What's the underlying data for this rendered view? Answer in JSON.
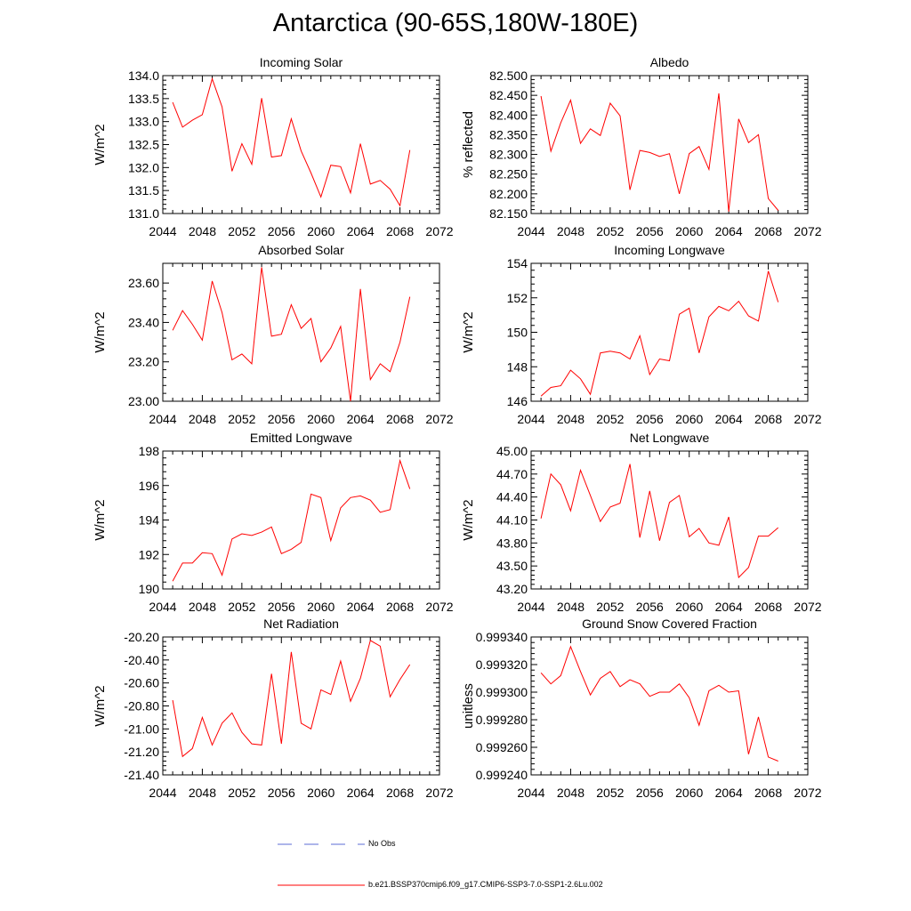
{
  "title": "Antarctica (90-65S,180W-180E)",
  "colors": {
    "model": "#ff0000",
    "obs": "#5b6bd6",
    "axis": "#000000"
  },
  "legend": {
    "obs_label": "No Obs",
    "model_label": "b.e21.BSSP370cmip6.f09_g17.CMIP6-SSP3-7.0-SSP1-2.6Lu.002"
  },
  "chart_data": [
    {
      "type": "line",
      "title": "Incoming Solar",
      "xlabel": "",
      "ylabel": "W/m^2",
      "xlim": [
        2044,
        2072
      ],
      "ylim": [
        131.0,
        134.0
      ],
      "grid": false,
      "xticks": [
        "2044",
        "2048",
        "2052",
        "2056",
        "2060",
        "2064",
        "2068",
        "2072"
      ],
      "yticks": [
        "131.0",
        "131.5",
        "132.0",
        "132.5",
        "133.0",
        "133.5",
        "134.0"
      ],
      "x": [
        2045,
        2046,
        2047,
        2048,
        2049,
        2050,
        2051,
        2052,
        2053,
        2054,
        2055,
        2056,
        2057,
        2058,
        2059,
        2060,
        2061,
        2062,
        2063,
        2064,
        2065,
        2066,
        2067,
        2068,
        2069
      ],
      "values": [
        133.42,
        132.88,
        133.03,
        133.15,
        133.93,
        133.32,
        131.92,
        132.52,
        132.07,
        133.51,
        132.23,
        132.26,
        133.06,
        132.36,
        131.88,
        131.36,
        132.05,
        132.02,
        131.45,
        132.52,
        131.64,
        131.72,
        131.53,
        131.17,
        132.38
      ]
    },
    {
      "type": "line",
      "title": "Albedo",
      "xlabel": "",
      "ylabel": "% reflected",
      "xlim": [
        2044,
        2072
      ],
      "ylim": [
        82.15,
        82.5
      ],
      "grid": false,
      "xticks": [
        "2044",
        "2048",
        "2052",
        "2056",
        "2060",
        "2064",
        "2068",
        "2072"
      ],
      "yticks": [
        "82.150",
        "82.200",
        "82.250",
        "82.300",
        "82.350",
        "82.400",
        "82.450",
        "82.500"
      ],
      "x": [
        2045,
        2046,
        2047,
        2048,
        2049,
        2050,
        2051,
        2052,
        2053,
        2054,
        2055,
        2056,
        2057,
        2058,
        2059,
        2060,
        2061,
        2062,
        2063,
        2064,
        2065,
        2066,
        2067,
        2068,
        2069
      ],
      "values": [
        82.448,
        82.308,
        82.38,
        82.438,
        82.328,
        82.365,
        82.348,
        82.43,
        82.398,
        82.21,
        82.31,
        82.305,
        82.295,
        82.302,
        82.2,
        82.302,
        82.32,
        82.262,
        82.455,
        82.155,
        82.39,
        82.33,
        82.35,
        82.188,
        82.158
      ]
    },
    {
      "type": "line",
      "title": "Absorbed Solar",
      "xlabel": "",
      "ylabel": "W/m^2",
      "xlim": [
        2044,
        2072
      ],
      "ylim": [
        23.0,
        23.7
      ],
      "grid": false,
      "xticks": [
        "2044",
        "2048",
        "2052",
        "2056",
        "2060",
        "2064",
        "2068",
        "2072"
      ],
      "yticks": [
        "23.00",
        "23.20",
        "23.40",
        "23.60"
      ],
      "x": [
        2045,
        2046,
        2047,
        2048,
        2049,
        2050,
        2051,
        2052,
        2053,
        2054,
        2055,
        2056,
        2057,
        2058,
        2059,
        2060,
        2061,
        2062,
        2063,
        2064,
        2065,
        2066,
        2067,
        2068,
        2069
      ],
      "values": [
        23.36,
        23.46,
        23.39,
        23.31,
        23.61,
        23.45,
        23.21,
        23.24,
        23.19,
        23.68,
        23.33,
        23.34,
        23.49,
        23.37,
        23.42,
        23.2,
        23.27,
        23.38,
        23.0,
        23.57,
        23.11,
        23.19,
        23.15,
        23.3,
        23.53
      ]
    },
    {
      "type": "line",
      "title": "Incoming Longwave",
      "xlabel": "",
      "ylabel": "W/m^2",
      "xlim": [
        2044,
        2072
      ],
      "ylim": [
        146,
        154
      ],
      "grid": false,
      "xticks": [
        "2044",
        "2048",
        "2052",
        "2056",
        "2060",
        "2064",
        "2068",
        "2072"
      ],
      "yticks": [
        "146",
        "148",
        "150",
        "152",
        "154"
      ],
      "x": [
        2045,
        2046,
        2047,
        2048,
        2049,
        2050,
        2051,
        2052,
        2053,
        2054,
        2055,
        2056,
        2057,
        2058,
        2059,
        2060,
        2061,
        2062,
        2063,
        2064,
        2065,
        2066,
        2067,
        2068,
        2069
      ],
      "values": [
        146.3,
        146.8,
        146.9,
        147.8,
        147.3,
        146.4,
        148.8,
        148.9,
        148.8,
        148.45,
        149.8,
        147.55,
        148.45,
        148.35,
        151.05,
        151.4,
        148.8,
        150.9,
        151.5,
        151.25,
        151.8,
        150.95,
        150.65,
        153.55,
        151.75
      ]
    },
    {
      "type": "line",
      "title": "Emitted Longwave",
      "xlabel": "",
      "ylabel": "W/m^2",
      "xlim": [
        2044,
        2072
      ],
      "ylim": [
        190,
        198
      ],
      "grid": false,
      "xticks": [
        "2044",
        "2048",
        "2052",
        "2056",
        "2060",
        "2064",
        "2068",
        "2072"
      ],
      "yticks": [
        "190",
        "192",
        "194",
        "196",
        "198"
      ],
      "x": [
        2045,
        2046,
        2047,
        2048,
        2049,
        2050,
        2051,
        2052,
        2053,
        2054,
        2055,
        2056,
        2057,
        2058,
        2059,
        2060,
        2061,
        2062,
        2063,
        2064,
        2065,
        2066,
        2067,
        2068,
        2069
      ],
      "values": [
        190.45,
        191.5,
        191.5,
        192.1,
        192.05,
        190.8,
        192.9,
        193.2,
        193.1,
        193.3,
        193.6,
        192.05,
        192.3,
        192.7,
        195.5,
        195.3,
        192.8,
        194.7,
        195.3,
        195.4,
        195.15,
        194.45,
        194.6,
        197.45,
        195.8
      ]
    },
    {
      "type": "line",
      "title": "Net Longwave",
      "xlabel": "",
      "ylabel": "W/m^2",
      "xlim": [
        2044,
        2072
      ],
      "ylim": [
        43.2,
        45.0
      ],
      "grid": false,
      "xticks": [
        "2044",
        "2048",
        "2052",
        "2056",
        "2060",
        "2064",
        "2068",
        "2072"
      ],
      "yticks": [
        "43.20",
        "43.50",
        "43.80",
        "44.10",
        "44.40",
        "44.70",
        "45.00"
      ],
      "x": [
        2045,
        2046,
        2047,
        2048,
        2049,
        2050,
        2051,
        2052,
        2053,
        2054,
        2055,
        2056,
        2057,
        2058,
        2059,
        2060,
        2061,
        2062,
        2063,
        2064,
        2065,
        2066,
        2067,
        2068,
        2069
      ],
      "values": [
        44.12,
        44.7,
        44.56,
        44.22,
        44.75,
        44.42,
        44.08,
        44.27,
        44.32,
        44.83,
        43.87,
        44.48,
        43.83,
        44.33,
        44.42,
        43.88,
        43.99,
        43.8,
        43.77,
        44.14,
        43.35,
        43.48,
        43.89,
        43.89,
        44.0
      ]
    },
    {
      "type": "line",
      "title": "Net Radiation",
      "xlabel": "",
      "ylabel": "W/m^2",
      "xlim": [
        2044,
        2072
      ],
      "ylim": [
        -21.4,
        -20.2
      ],
      "grid": false,
      "xticks": [
        "2044",
        "2048",
        "2052",
        "2056",
        "2060",
        "2064",
        "2068",
        "2072"
      ],
      "yticks": [
        "-21.40",
        "-21.20",
        "-21.00",
        "-20.80",
        "-20.60",
        "-20.40",
        "-20.20"
      ],
      "x": [
        2045,
        2046,
        2047,
        2048,
        2049,
        2050,
        2051,
        2052,
        2053,
        2054,
        2055,
        2056,
        2057,
        2058,
        2059,
        2060,
        2061,
        2062,
        2063,
        2064,
        2065,
        2066,
        2067,
        2068,
        2069
      ],
      "values": [
        -20.75,
        -21.24,
        -21.17,
        -20.9,
        -21.14,
        -20.95,
        -20.86,
        -21.03,
        -21.13,
        -21.14,
        -20.52,
        -21.13,
        -20.33,
        -20.95,
        -21.0,
        -20.66,
        -20.7,
        -20.41,
        -20.76,
        -20.56,
        -20.23,
        -20.28,
        -20.72,
        -20.57,
        -20.44
      ]
    },
    {
      "type": "line",
      "title": "Ground Snow Covered Fraction",
      "xlabel": "",
      "ylabel": "unitless",
      "xlim": [
        2044,
        2072
      ],
      "ylim": [
        0.99924,
        0.99934
      ],
      "grid": false,
      "xticks": [
        "2044",
        "2048",
        "2052",
        "2056",
        "2060",
        "2064",
        "2068",
        "2072"
      ],
      "yticks": [
        "0.999240",
        "0.999260",
        "0.999280",
        "0.999300",
        "0.999320",
        "0.999340"
      ],
      "x": [
        2045,
        2046,
        2047,
        2048,
        2049,
        2050,
        2051,
        2052,
        2053,
        2054,
        2055,
        2056,
        2057,
        2058,
        2059,
        2060,
        2061,
        2062,
        2063,
        2064,
        2065,
        2066,
        2067,
        2068,
        2069
      ],
      "values": [
        0.999314,
        0.999306,
        0.999312,
        0.999333,
        0.999315,
        0.999298,
        0.99931,
        0.999315,
        0.999304,
        0.999309,
        0.999306,
        0.999297,
        0.9993,
        0.9993,
        0.999306,
        0.999296,
        0.999276,
        0.999301,
        0.999305,
        0.9993,
        0.999301,
        0.999255,
        0.999282,
        0.999253,
        0.99925
      ]
    }
  ]
}
